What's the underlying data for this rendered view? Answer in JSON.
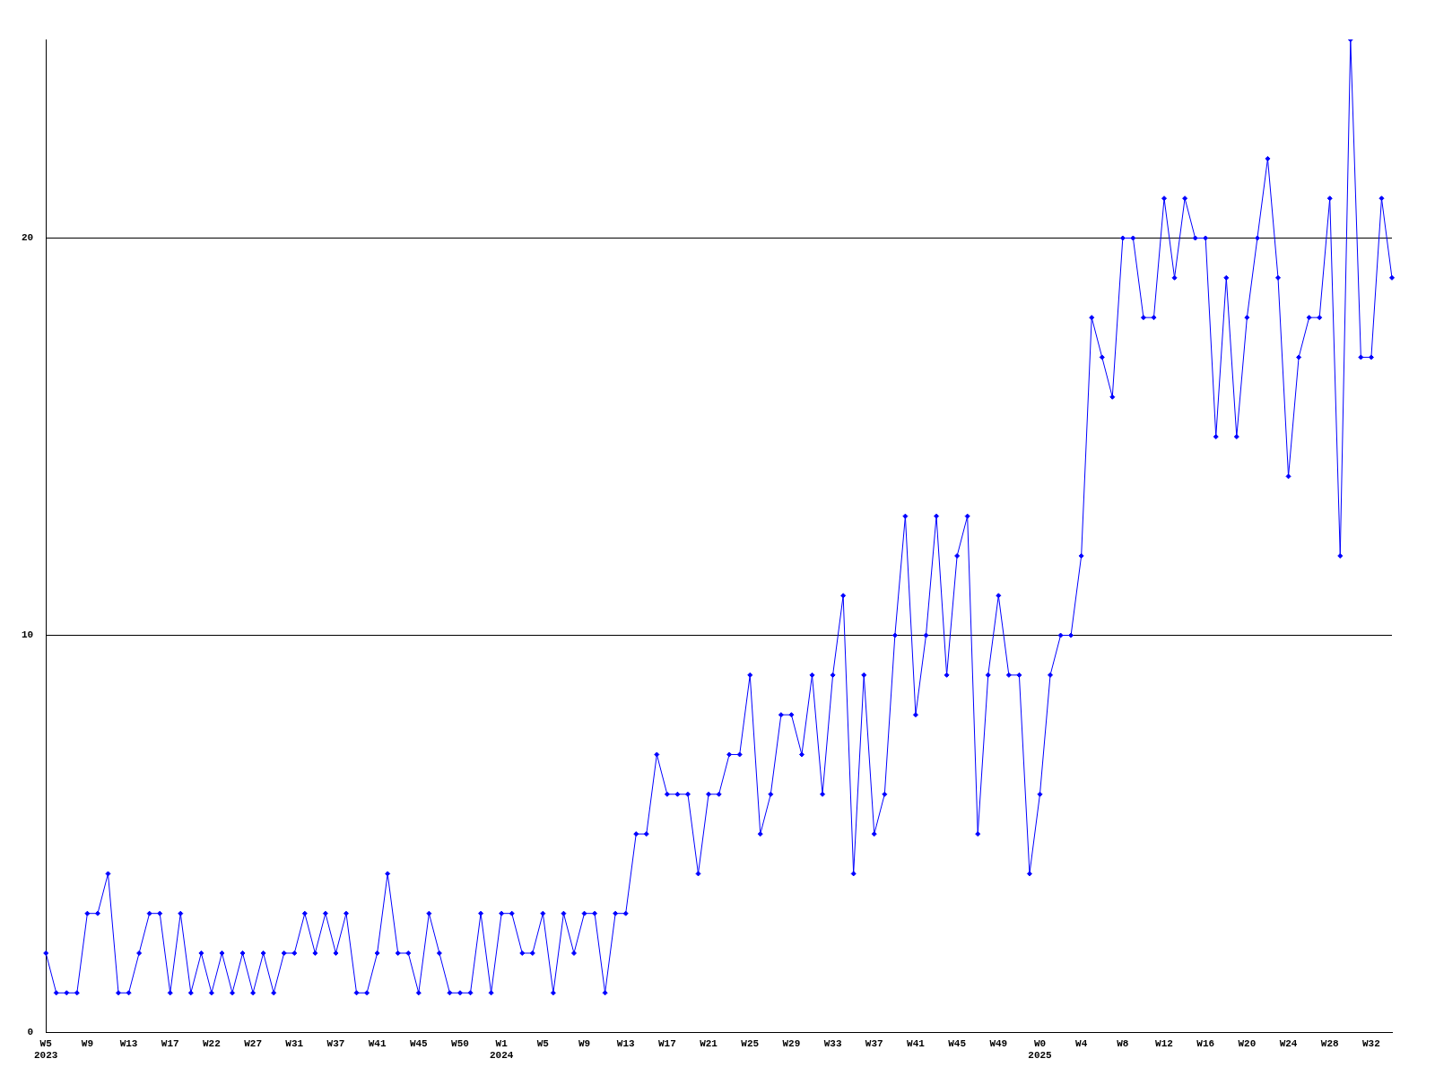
{
  "chart_data": {
    "type": "line",
    "categories": [
      "W5\n2023",
      null,
      null,
      null,
      "W9",
      null,
      null,
      null,
      "W13",
      null,
      null,
      null,
      "W17",
      null,
      null,
      null,
      "W22",
      null,
      null,
      null,
      "W27",
      null,
      null,
      null,
      "W31",
      null,
      null,
      null,
      "W37",
      null,
      null,
      null,
      "W41",
      null,
      null,
      null,
      "W45",
      null,
      null,
      null,
      "W50",
      null,
      null,
      null,
      "W1\n2024",
      null,
      null,
      null,
      "W5",
      null,
      null,
      null,
      "W9",
      null,
      null,
      null,
      "W13",
      null,
      null,
      null,
      "W17",
      null,
      null,
      null,
      "W21",
      null,
      null,
      null,
      "W25",
      null,
      null,
      null,
      "W29",
      null,
      null,
      null,
      "W33",
      null,
      null,
      null,
      "W37",
      null,
      null,
      null,
      "W41",
      null,
      null,
      null,
      "W45",
      null,
      null,
      null,
      "W49",
      null,
      null,
      null,
      "W0\n2025",
      null,
      null,
      null,
      "W4",
      null,
      null,
      null,
      "W8",
      null,
      null,
      null,
      "W12",
      null,
      null,
      null,
      "W16",
      null,
      null,
      null,
      "W20",
      null,
      null,
      null,
      "W24",
      null,
      null,
      null,
      "W28",
      null,
      null,
      null,
      "W32",
      null,
      null
    ],
    "series": [
      {
        "color": "#0000ff",
        "values": [
          2,
          1,
          1,
          1,
          3,
          3,
          4,
          1,
          1,
          2,
          3,
          3,
          1,
          3,
          1,
          2,
          1,
          2,
          1,
          2,
          1,
          2,
          1,
          2,
          2,
          3,
          2,
          3,
          2,
          3,
          1,
          1,
          2,
          4,
          2,
          2,
          1,
          3,
          2,
          1,
          1,
          1,
          3,
          1,
          3,
          3,
          2,
          2,
          3,
          1,
          3,
          2,
          3,
          3,
          1,
          3,
          3,
          5,
          5,
          7,
          6,
          6,
          6,
          4,
          6,
          6,
          7,
          7,
          9,
          5,
          6,
          8,
          8,
          7,
          9,
          6,
          9,
          11,
          4,
          9,
          5,
          6,
          10,
          13,
          8,
          10,
          13,
          9,
          12,
          13,
          5,
          9,
          11,
          9,
          9,
          4,
          6,
          9,
          10,
          10,
          12,
          18,
          17,
          16,
          20,
          20,
          18,
          18,
          21,
          19,
          21,
          20,
          20,
          15,
          19,
          15,
          18,
          20,
          22,
          19,
          14,
          17,
          18,
          18,
          21,
          12,
          25,
          17,
          17,
          21,
          19
        ]
      }
    ],
    "ylim": [
      0,
      25
    ],
    "yticks": [
      0,
      10,
      20
    ],
    "grid": "y",
    "marker": "diamond",
    "line_style": "solid"
  }
}
